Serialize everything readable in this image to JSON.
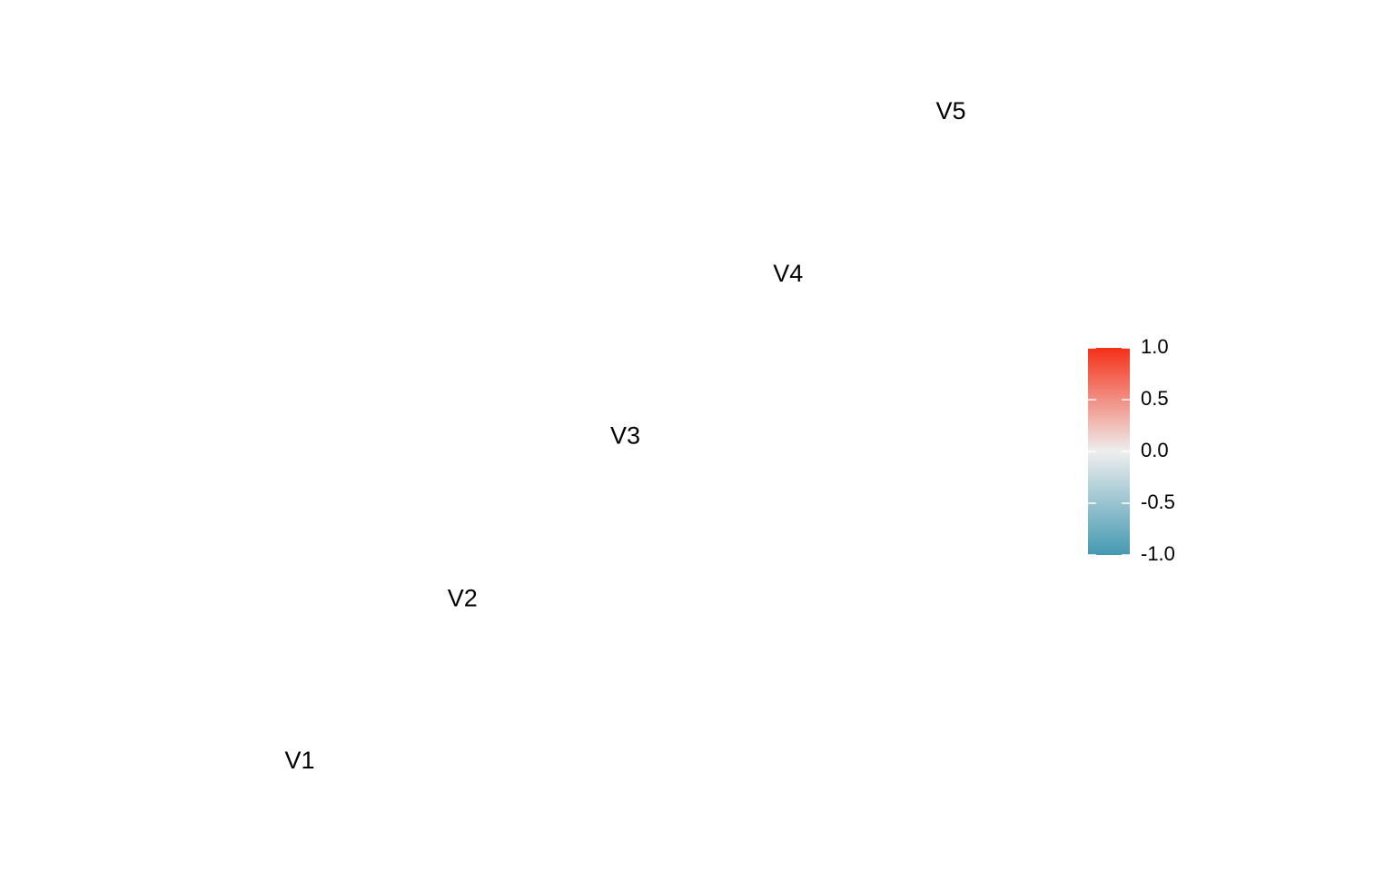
{
  "chart_data": {
    "type": "heatmap",
    "title": "",
    "variables": [
      "V1",
      "V2",
      "V3",
      "V4",
      "V5"
    ],
    "cells": [],
    "legend": {
      "position": "right",
      "min": -1.0,
      "max": 1.0,
      "ticks": [
        1.0,
        0.5,
        0.0,
        -0.5,
        -1.0
      ],
      "tick_labels": [
        "1.0",
        "0.5",
        "0.0",
        "-0.5",
        "-1.0"
      ],
      "colors": {
        "low": "#4499b2",
        "mid": "#eeeeee",
        "high": "#f53018"
      }
    },
    "grid": false
  }
}
